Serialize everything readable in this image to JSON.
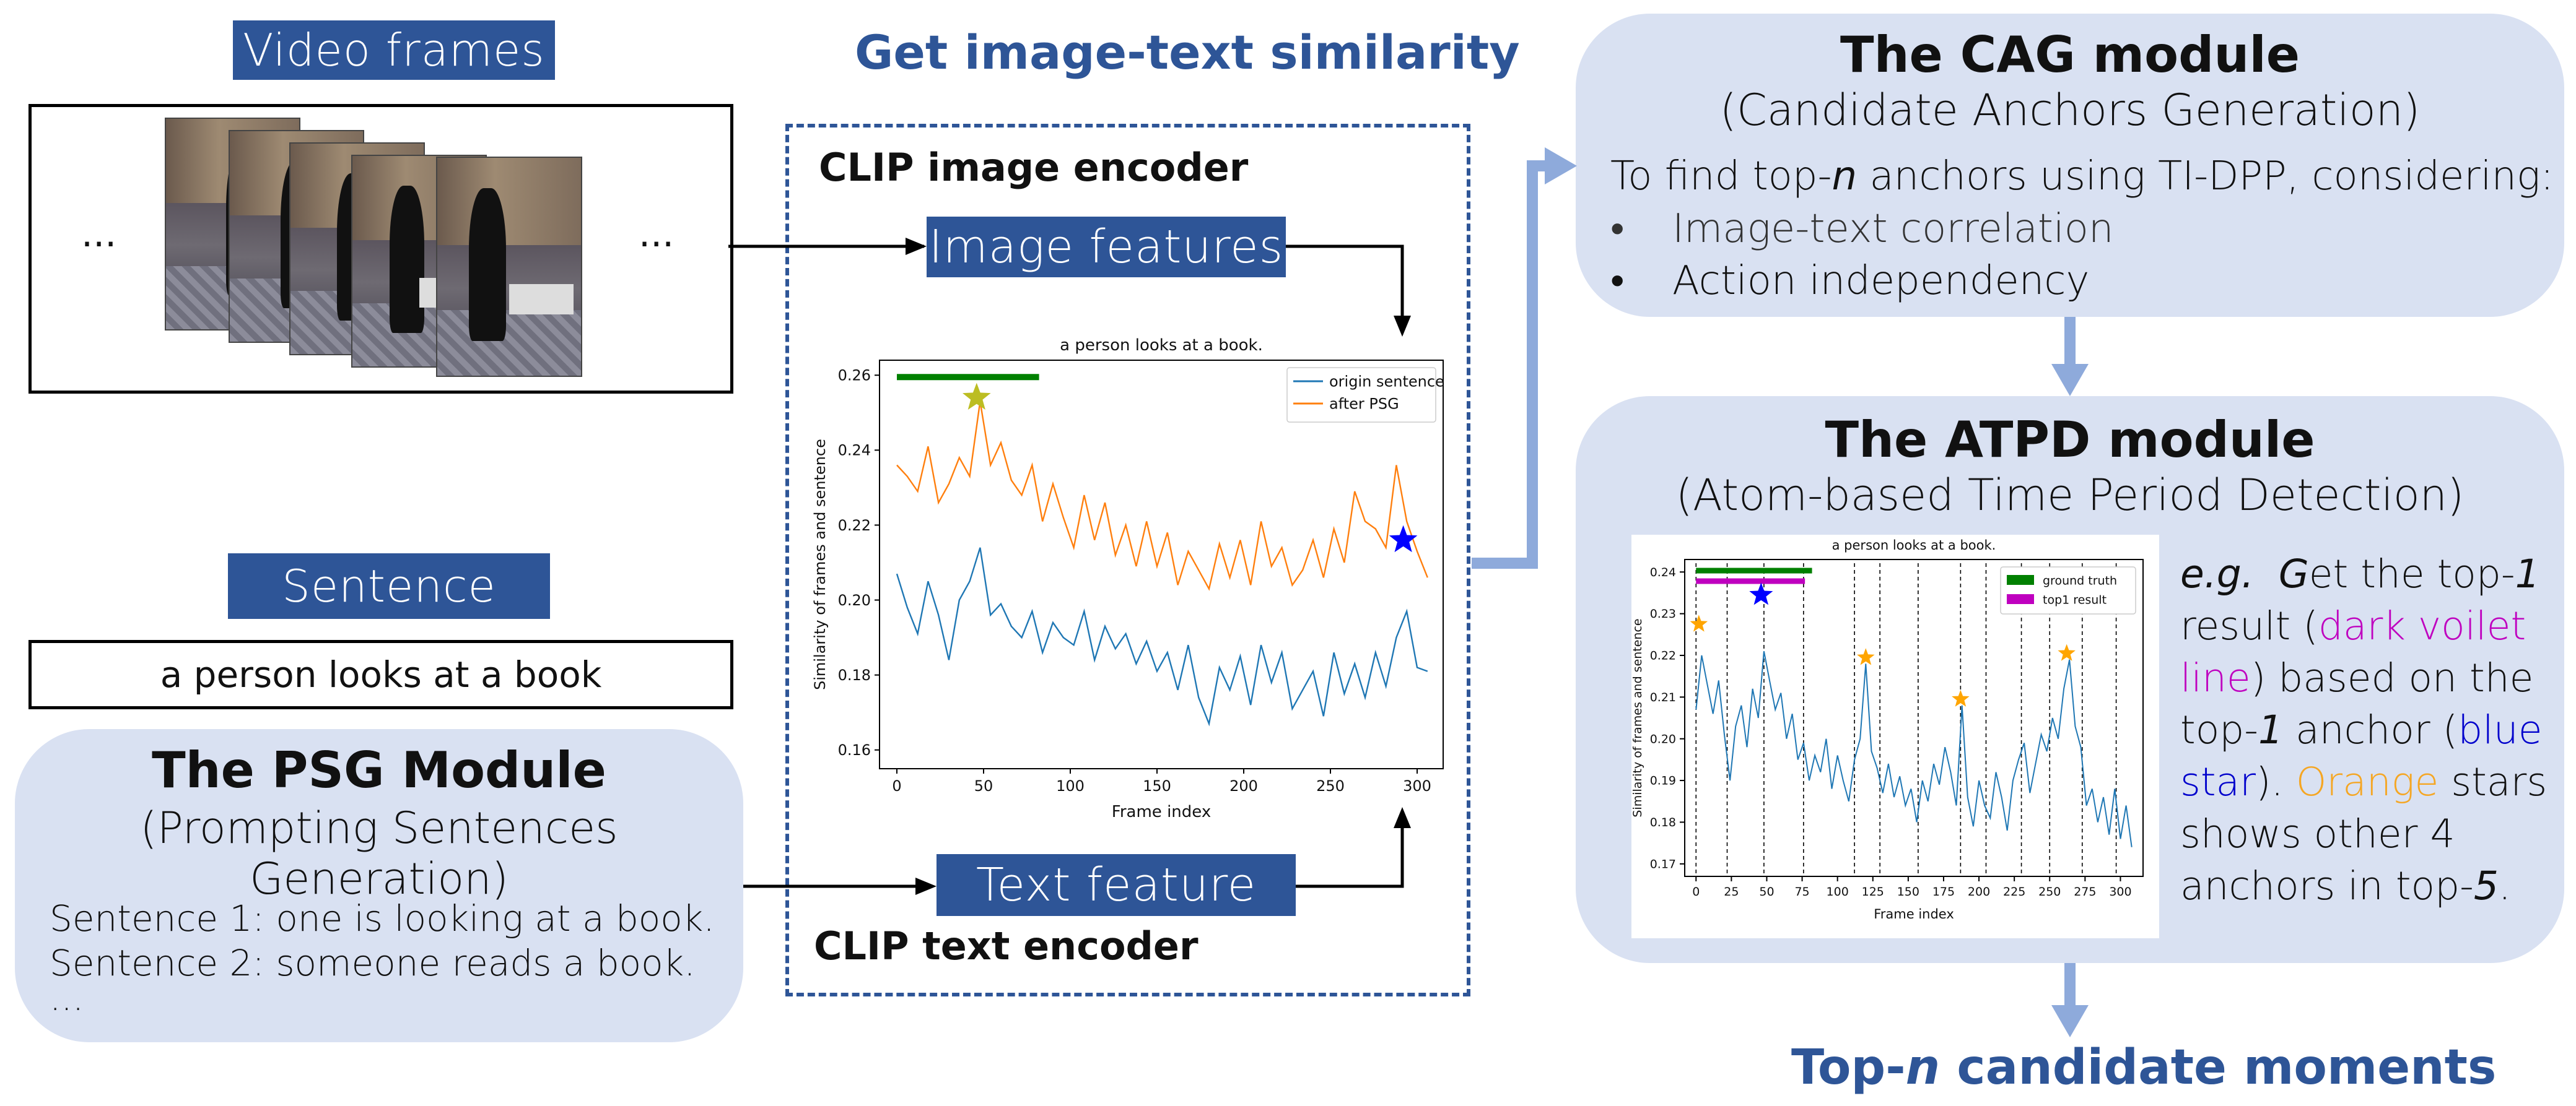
{
  "left": {
    "video_frames_label": "Video frames",
    "ellipsis_left": "...",
    "ellipsis_right": "...",
    "sentence_label": "Sentence",
    "sentence_text": "a person looks at a book",
    "psg": {
      "title": "The PSG Module",
      "subtitle": "(Prompting Sentences Generation)",
      "lines": [
        "Sentence 1: one is looking at a book.",
        "Sentence 2: someone reads a book.",
        "..."
      ]
    }
  },
  "middle": {
    "title": "Get image-text similarity",
    "image_encoder": "CLIP image encoder",
    "image_features": "Image features",
    "text_feature": "Text feature",
    "text_encoder": "CLIP text encoder"
  },
  "right": {
    "cag": {
      "title": "The CAG module",
      "subtitle": "(Candidate Anchors Generation)",
      "intro_pre": "To find top-",
      "intro_n": "n",
      "intro_post": " anchors using TI-DPP, considering:",
      "bullets": [
        "Image-text correlation",
        "Action independency"
      ],
      "bullet_mark": "•"
    },
    "atpd": {
      "title": "The ATPD module",
      "subtitle": "(Atom-based Time Period Detection)",
      "desc": {
        "eg": "e.g.",
        "g": "G",
        "p1": "et the top-",
        "one_a": "1",
        "p2": "result (",
        "dark": "dark voilet line",
        "p3": ") based on the top-",
        "one_b": "1",
        "p4": " anchor (",
        "blue": "blue star",
        "p5": "). ",
        "orange": "Orange",
        "p6": " stars shows other 4 anchors in top-",
        "five": "5",
        "p7": "."
      }
    },
    "output_pre": "Top-",
    "output_n": "n",
    "output_post": " candidate moments"
  },
  "colors": {
    "brand_blue": "#2e5597",
    "panel_bg": "#d9e1f2",
    "arrow_light": "#8eaadb",
    "origin": "#1f77b4",
    "after_psg": "#ff7f0e",
    "ground_truth": "#008000",
    "top1": "#bf00bf",
    "star_blue": "#0000ff",
    "star_orange": "#ffa500",
    "star_olive": "#bcbd22"
  },
  "chart_data": [
    {
      "type": "line",
      "title": "a person looks at a book.",
      "xlabel": "Frame index",
      "ylabel": "Similarity of frames and sentence",
      "xlim": [
        -10,
        315
      ],
      "ylim": [
        0.155,
        0.264
      ],
      "xticks": [
        0,
        50,
        100,
        150,
        200,
        250,
        300
      ],
      "yticks": [
        0.16,
        0.18,
        0.2,
        0.22,
        0.24,
        0.26
      ],
      "ytick_labels": [
        "0.16",
        "0.18",
        "0.20",
        "0.22",
        "0.24",
        "0.26"
      ],
      "legend": "top-right",
      "legend_entries": [
        "origin sentence",
        "after PSG"
      ],
      "ground_truth": [
        0,
        82
      ],
      "ground_truth_y": 0.2595,
      "star": {
        "x": 46,
        "y": 0.254,
        "color": "olive"
      },
      "star2": {
        "x": 292,
        "y": 0.216,
        "color": "blue"
      },
      "series": [
        {
          "name": "origin sentence",
          "x": [
            0,
            6,
            12,
            18,
            24,
            30,
            36,
            42,
            48,
            54,
            60,
            66,
            72,
            78,
            84,
            90,
            96,
            102,
            108,
            114,
            120,
            126,
            132,
            138,
            144,
            150,
            156,
            162,
            168,
            174,
            180,
            186,
            192,
            198,
            204,
            210,
            216,
            222,
            228,
            234,
            240,
            246,
            252,
            258,
            264,
            270,
            276,
            282,
            288,
            294,
            300,
            306
          ],
          "values": [
            0.207,
            0.198,
            0.191,
            0.205,
            0.196,
            0.184,
            0.2,
            0.205,
            0.214,
            0.196,
            0.199,
            0.193,
            0.19,
            0.197,
            0.186,
            0.194,
            0.19,
            0.188,
            0.197,
            0.184,
            0.193,
            0.187,
            0.191,
            0.183,
            0.189,
            0.181,
            0.186,
            0.176,
            0.188,
            0.174,
            0.167,
            0.182,
            0.176,
            0.185,
            0.172,
            0.188,
            0.178,
            0.186,
            0.171,
            0.176,
            0.181,
            0.169,
            0.186,
            0.175,
            0.183,
            0.174,
            0.186,
            0.177,
            0.19,
            0.197,
            0.182,
            0.181
          ]
        },
        {
          "name": "after PSG",
          "x": [
            0,
            6,
            12,
            18,
            24,
            30,
            36,
            42,
            48,
            54,
            60,
            66,
            72,
            78,
            84,
            90,
            96,
            102,
            108,
            114,
            120,
            126,
            132,
            138,
            144,
            150,
            156,
            162,
            168,
            174,
            180,
            186,
            192,
            198,
            204,
            210,
            216,
            222,
            228,
            234,
            240,
            246,
            252,
            258,
            264,
            270,
            276,
            282,
            288,
            294,
            300,
            306
          ],
          "values": [
            0.236,
            0.233,
            0.229,
            0.241,
            0.226,
            0.231,
            0.238,
            0.233,
            0.253,
            0.236,
            0.242,
            0.232,
            0.228,
            0.236,
            0.221,
            0.231,
            0.222,
            0.214,
            0.228,
            0.216,
            0.226,
            0.212,
            0.22,
            0.209,
            0.221,
            0.209,
            0.218,
            0.204,
            0.213,
            0.208,
            0.203,
            0.215,
            0.206,
            0.216,
            0.204,
            0.221,
            0.209,
            0.214,
            0.204,
            0.208,
            0.216,
            0.206,
            0.219,
            0.21,
            0.229,
            0.221,
            0.219,
            0.214,
            0.236,
            0.221,
            0.213,
            0.206
          ]
        }
      ]
    },
    {
      "type": "line",
      "title": "a person looks at a book.",
      "xlabel": "Frame index",
      "ylabel": "Similarity of frames and sentence",
      "xlim": [
        -8,
        316
      ],
      "ylim": [
        0.167,
        0.243
      ],
      "xticks": [
        0,
        25,
        50,
        75,
        100,
        125,
        150,
        175,
        200,
        225,
        250,
        275,
        300
      ],
      "yticks": [
        0.17,
        0.18,
        0.19,
        0.2,
        0.21,
        0.22,
        0.23,
        0.24
      ],
      "ytick_labels": [
        "0.17",
        "0.18",
        "0.19",
        "0.20",
        "0.21",
        "0.22",
        "0.23",
        "0.24"
      ],
      "legend": "top-right",
      "legend_entries": [
        "ground truth",
        "top1 result"
      ],
      "ground_truth": [
        0,
        82
      ],
      "top1": [
        0,
        77
      ],
      "dividers": [
        0,
        22,
        48,
        76,
        112,
        130,
        157,
        187,
        205,
        230,
        250,
        273,
        297
      ],
      "anchors_orange": [
        {
          "x": 2,
          "y": 0.2275
        },
        {
          "x": 120,
          "y": 0.2195
        },
        {
          "x": 187,
          "y": 0.2095
        },
        {
          "x": 262,
          "y": 0.2205
        }
      ],
      "anchor_blue": {
        "x": 46,
        "y": 0.2345
      },
      "series": [
        {
          "name": "similarity",
          "x": [
            0,
            4,
            8,
            12,
            16,
            20,
            24,
            28,
            32,
            36,
            40,
            44,
            48,
            52,
            56,
            60,
            64,
            68,
            72,
            76,
            80,
            84,
            88,
            92,
            96,
            100,
            104,
            108,
            112,
            116,
            120,
            124,
            128,
            132,
            136,
            140,
            144,
            148,
            152,
            156,
            160,
            164,
            168,
            172,
            176,
            180,
            184,
            188,
            192,
            196,
            200,
            204,
            208,
            212,
            216,
            220,
            224,
            228,
            232,
            236,
            240,
            244,
            248,
            252,
            256,
            260,
            264,
            268,
            272,
            276,
            280,
            284,
            288,
            292,
            296,
            300,
            304,
            308
          ],
          "values": [
            0.207,
            0.22,
            0.213,
            0.206,
            0.214,
            0.201,
            0.19,
            0.203,
            0.208,
            0.198,
            0.212,
            0.205,
            0.221,
            0.214,
            0.207,
            0.211,
            0.2,
            0.206,
            0.195,
            0.199,
            0.19,
            0.196,
            0.192,
            0.2,
            0.188,
            0.196,
            0.19,
            0.185,
            0.195,
            0.2,
            0.218,
            0.197,
            0.193,
            0.187,
            0.194,
            0.186,
            0.191,
            0.184,
            0.188,
            0.18,
            0.19,
            0.185,
            0.194,
            0.189,
            0.198,
            0.192,
            0.184,
            0.208,
            0.186,
            0.179,
            0.19,
            0.184,
            0.181,
            0.192,
            0.186,
            0.178,
            0.19,
            0.195,
            0.199,
            0.187,
            0.194,
            0.201,
            0.197,
            0.205,
            0.2,
            0.212,
            0.219,
            0.203,
            0.198,
            0.184,
            0.188,
            0.18,
            0.186,
            0.177,
            0.188,
            0.176,
            0.184,
            0.174
          ]
        }
      ]
    }
  ]
}
